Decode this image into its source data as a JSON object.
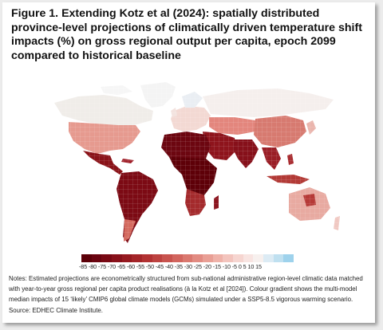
{
  "figure": {
    "title": "Figure 1. Extending Kotz et al (2024): spatially distributed province-level projections of climatically driven temperature shift impacts (%) on gross regional output per capita, epoch 2099 compared to historical baseline"
  },
  "legend": {
    "scale_label": "-85 -80 -75 -70 -65 -60 -55 -50 -45 -40 -35 -30 -25 -20 -15 -10  -5   0   5  10  15",
    "values": [
      -85,
      -80,
      -75,
      -70,
      -65,
      -60,
      -55,
      -50,
      -45,
      -40,
      -35,
      -30,
      -25,
      -20,
      -15,
      -10,
      -5,
      0,
      5,
      10,
      15
    ],
    "colors": [
      "#5c0008",
      "#6a0410",
      "#790914",
      "#88111a",
      "#961a20",
      "#a42529",
      "#b23233",
      "#bd4240",
      "#c8534e",
      "#d2655e",
      "#da786f",
      "#e28b82",
      "#e99f95",
      "#efb2a9",
      "#f3c4bd",
      "#f6d5d0",
      "#f8e4e1",
      "#f7f0ee",
      "#dcebf4",
      "#bfe0f0",
      "#9ed2ec"
    ]
  },
  "notes": {
    "text": "Notes: Estimated projections are econometrically structured from sub-national administrative region-level climatic data matched with year-to-year gross regional per capita product realisations (à la Kotz et al [2024]). Colour gradient shows the multi-model median impacts of 15 ‘likely’ CMIP6 global climate models (GCMs) simulated under a SSP5-8.5 vigorous warming scenario. Source: EDHEC Climate Institute."
  }
}
